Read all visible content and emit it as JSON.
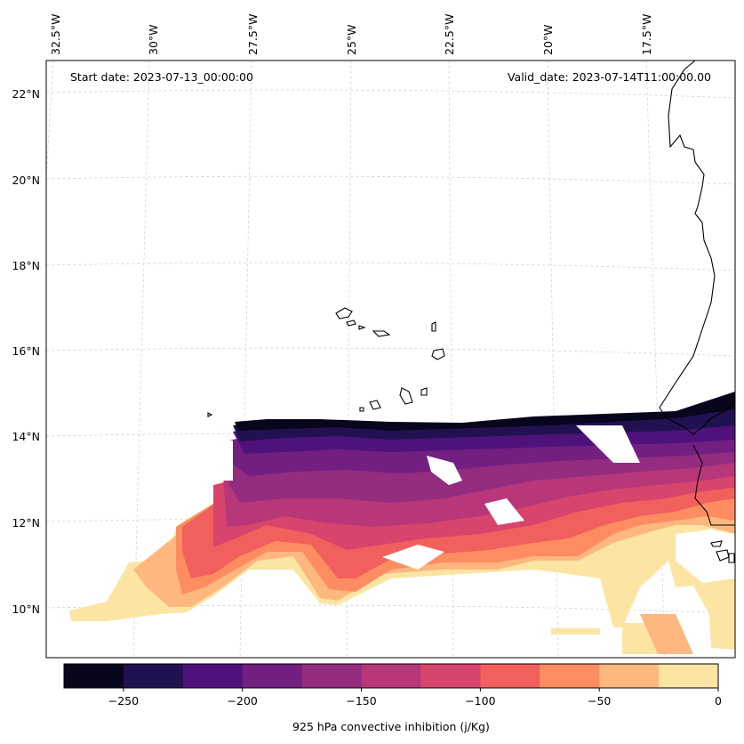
{
  "header": {
    "start_date": "Start date: 2023-07-13_00:00:00",
    "valid_date": "Valid_date: 2023-07-14T11:00:00.00"
  },
  "axes": {
    "longitude_labels": [
      "32.5°W",
      "30°W",
      "27.5°W",
      "25°W",
      "22.5°W",
      "20°W",
      "17.5°W"
    ],
    "latitude_labels": [
      "22°N",
      "20°N",
      "18°N",
      "16°N",
      "14°N",
      "12°N",
      "10°N"
    ],
    "gridlines": true
  },
  "colorbar": {
    "label": "925 hPa convective inhibition (j/Kg)",
    "tick_labels": [
      "−250",
      "−200",
      "−150",
      "−100",
      "−50",
      "0"
    ],
    "levels": [
      -275,
      -250,
      -225,
      -200,
      -175,
      -150,
      -125,
      -100,
      -75,
      -50,
      -25,
      0
    ],
    "colors": [
      "#07061c",
      "#221150",
      "#4f127b",
      "#721f81",
      "#942c80",
      "#b73779",
      "#d8456c",
      "#f1605d",
      "#fd8d61",
      "#feb77e",
      "#fce5a3"
    ],
    "orientation": "horizontal"
  },
  "chart_data": {
    "type": "heatmap",
    "variable": "925 hPa convective inhibition",
    "units": "j/Kg",
    "lon_range": [
      "33°W",
      "15.5°W"
    ],
    "lat_range": [
      "9°N",
      "22.7°N"
    ],
    "regions": [
      {
        "description_value_range": [
          -275,
          -225
        ],
        "location": "northern edge of band near 14°N"
      },
      {
        "description_value_range": [
          -225,
          -150
        ],
        "location": "band 12.5–14°N from 28°W to 16°W"
      },
      {
        "description_value_range": [
          -150,
          -75
        ],
        "location": "central band 11–13°N"
      },
      {
        "description_value_range": [
          -75,
          0
        ],
        "location": "southern fringe 9.5–12°N and near coast 17°W"
      }
    ]
  }
}
